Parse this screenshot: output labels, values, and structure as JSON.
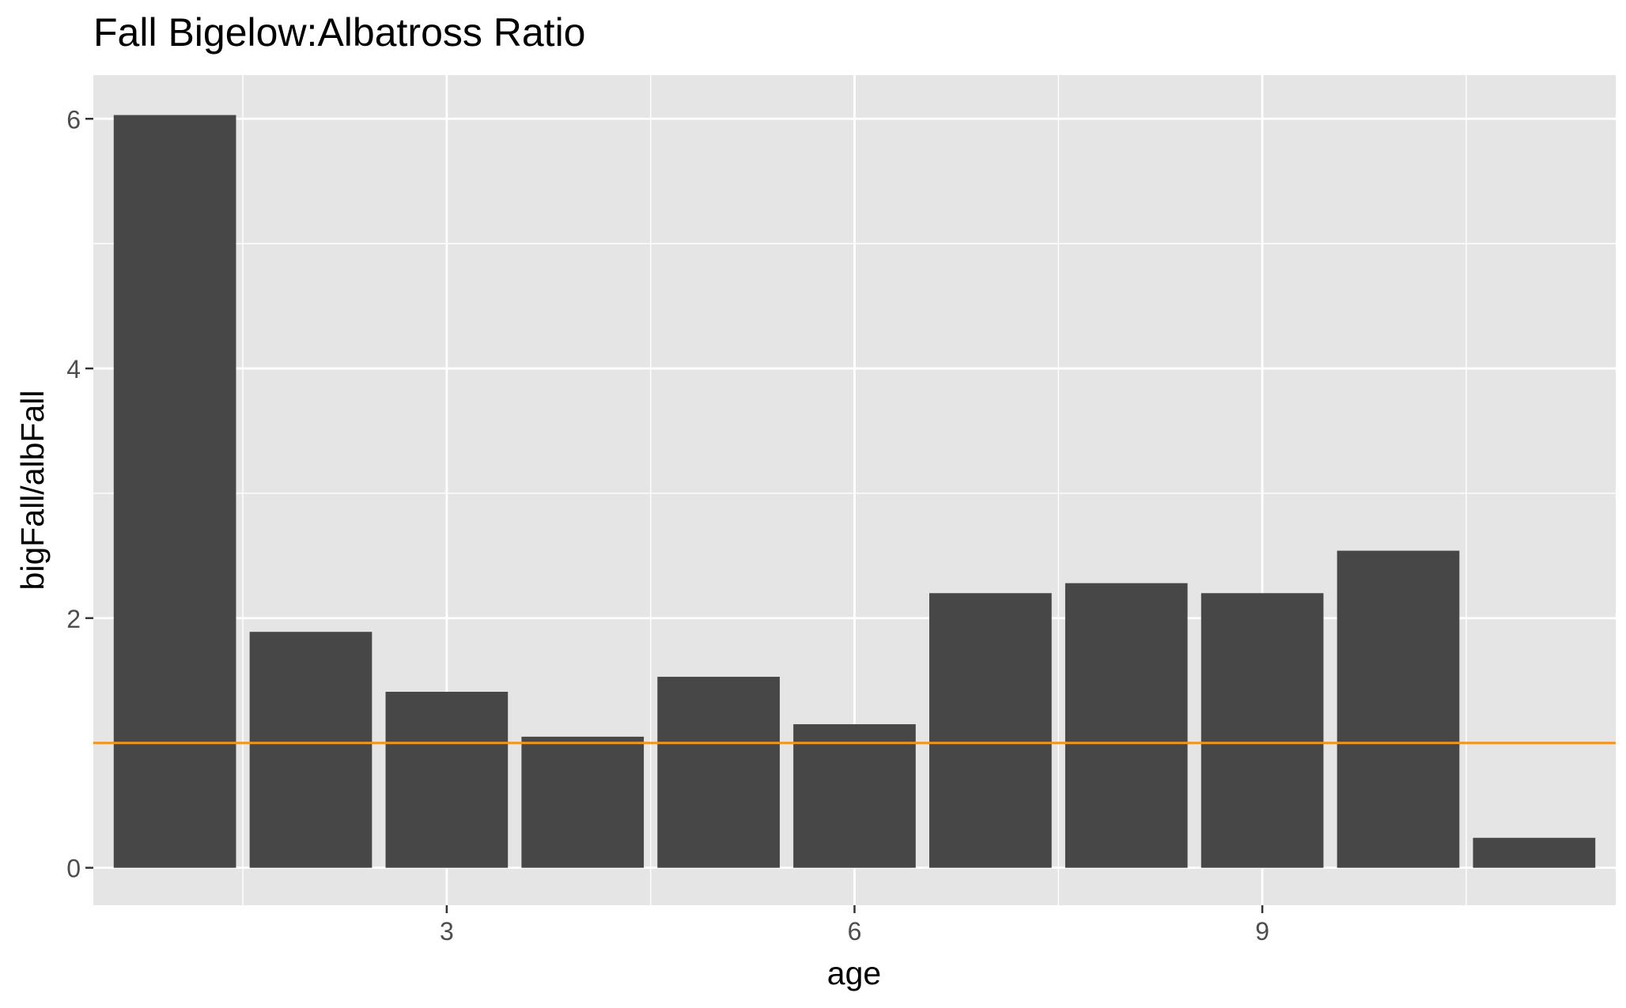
{
  "chart_data": {
    "type": "bar",
    "title": "Fall Bigelow:Albatross Ratio",
    "xlabel": "age",
    "ylabel": "bigFall/albFall",
    "x": [
      1,
      2,
      3,
      4,
      5,
      6,
      7,
      8,
      9,
      10,
      11
    ],
    "values": [
      6.03,
      1.89,
      1.41,
      1.05,
      1.53,
      1.15,
      2.2,
      2.28,
      2.2,
      2.54,
      0.24
    ],
    "xlim": [
      0.4,
      11.6
    ],
    "ylim": [
      -0.3,
      6.35
    ],
    "x_ticks": [
      3,
      6,
      9
    ],
    "y_ticks": [
      0,
      2,
      4,
      6
    ],
    "reference_line": {
      "y": 1
    },
    "grid": true,
    "colors": {
      "bar": "#474747",
      "panel": "#e5e5e5",
      "grid": "#ffffff",
      "reference_line": "#f5941d",
      "tick_label": "#4d4d4d",
      "text": "#000000"
    }
  }
}
